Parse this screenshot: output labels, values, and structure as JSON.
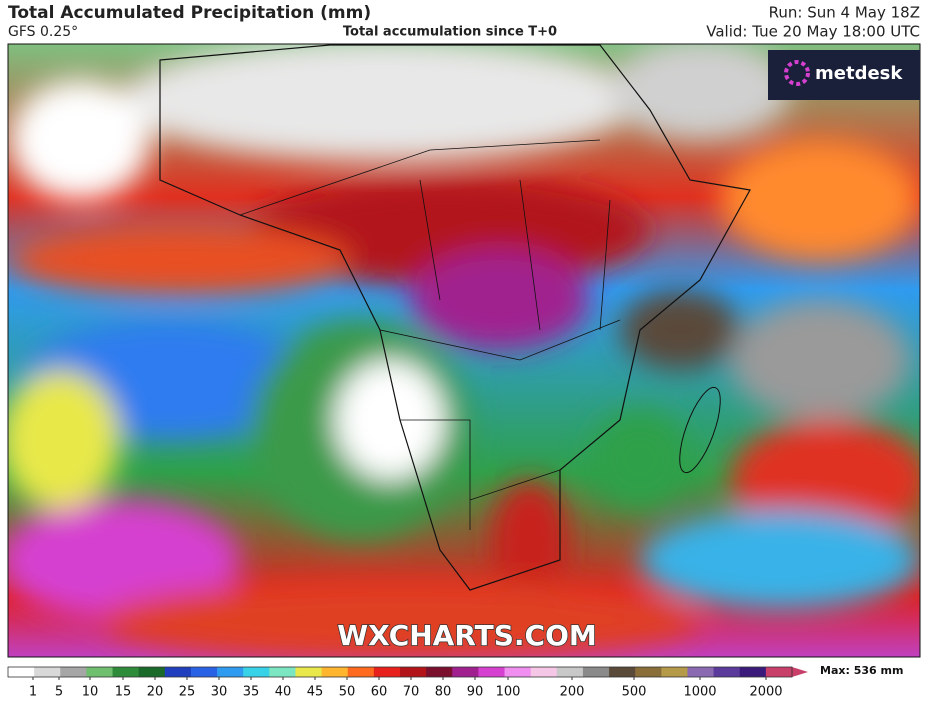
{
  "header": {
    "title": "Total Accumulated Precipitation (mm)",
    "model": "GFS 0.25°",
    "subtitle": "Total accumulation since T+0",
    "run": "Run: Sun 4 May 18Z",
    "valid": "Valid: Tue 20 May 18:00 UTC"
  },
  "logo": "metdesk",
  "watermark": "WXCHARTS.COM",
  "colorbar": {
    "ticks": [
      1,
      5,
      10,
      15,
      20,
      25,
      30,
      35,
      40,
      45,
      50,
      60,
      70,
      80,
      90,
      100,
      200,
      500,
      1000,
      2000
    ],
    "colors": [
      "#ffffff",
      "#d9d9d9",
      "#a6a6a6",
      "#6fbf6f",
      "#2e8b3a",
      "#1a6b2a",
      "#1f3fbf",
      "#2a62e6",
      "#2f9bf0",
      "#37d2e8",
      "#7ce6c2",
      "#e8e84a",
      "#ffb52e",
      "#ff6a1f",
      "#e8201c",
      "#b2141a",
      "#7a0f2e",
      "#a0208f",
      "#d640d0",
      "#f08ff0",
      "#f5c6e6",
      "#c8c8c8",
      "#8a8a8a",
      "#5a4a3a",
      "#8a6e3a",
      "#b59a4a",
      "#8a6ab0",
      "#5a3a9a",
      "#3a1a7a",
      "#c8406a"
    ],
    "max_label": "Max: 536 mm"
  }
}
